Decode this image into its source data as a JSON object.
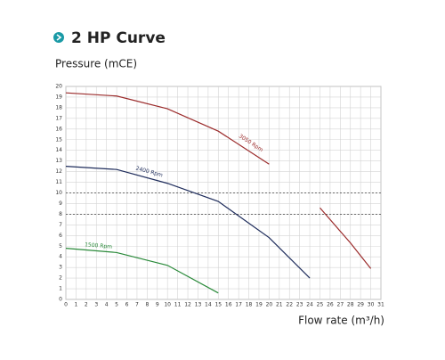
{
  "chart_data": {
    "type": "line",
    "title": "2 HP Curve",
    "y_label": "Pressure (mCE)",
    "x_label": "Flow rate (m³/h)",
    "x": [
      0,
      5,
      10,
      15,
      20,
      24,
      25,
      28,
      30
    ],
    "series": [
      {
        "name": "3050 Rpm",
        "color": "#9b2b2b",
        "values": [
          19.4,
          19.1,
          17.9,
          15.8,
          12.7,
          null,
          8.6,
          5.3,
          2.9
        ]
      },
      {
        "name": "2400 Rpm",
        "color": "#1f2d5c",
        "values": [
          12.5,
          12.2,
          10.9,
          9.2,
          5.8,
          2.0,
          null,
          null,
          null
        ]
      },
      {
        "name": "1500 Rpm",
        "color": "#2a8a3a",
        "values": [
          4.8,
          4.4,
          3.2,
          0.6,
          null,
          null,
          null,
          null,
          null
        ]
      }
    ],
    "reference_lines": [
      10,
      8
    ],
    "xlim": [
      0,
      31
    ],
    "ylim": [
      0,
      20
    ],
    "xticks": [
      0,
      1,
      2,
      3,
      4,
      5,
      6,
      7,
      8,
      9,
      10,
      11,
      12,
      13,
      14,
      15,
      16,
      17,
      18,
      19,
      20,
      21,
      22,
      23,
      24,
      25,
      26,
      27,
      28,
      29,
      30,
      31
    ],
    "yticks": [
      0,
      1,
      2,
      3,
      4,
      5,
      6,
      7,
      8,
      9,
      10,
      11,
      12,
      13,
      14,
      15,
      16,
      17,
      18,
      19,
      20
    ],
    "grid": true
  }
}
